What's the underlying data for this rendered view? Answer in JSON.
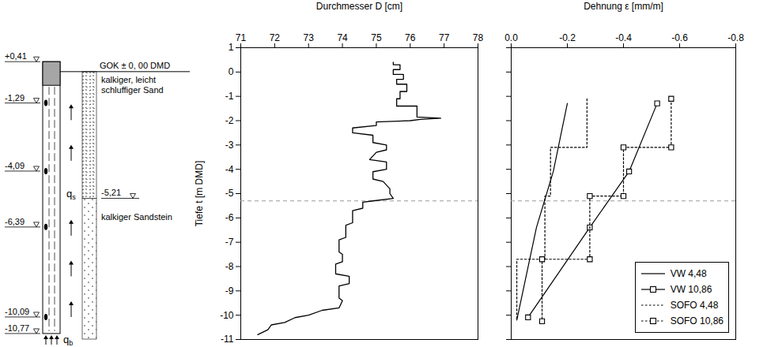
{
  "diagram": {
    "pile_levels": [
      {
        "value": 0.41,
        "label": "+0,41"
      },
      {
        "value": -1.29,
        "label": "-1,29"
      },
      {
        "value": -4.09,
        "label": "-4,09"
      },
      {
        "value": -6.39,
        "label": "-6,39"
      },
      {
        "value": -10.09,
        "label": "-10,09"
      },
      {
        "value": -10.77,
        "label": "-10,77"
      }
    ],
    "ground_level": {
      "value": 0,
      "label": "GOK ± 0, 00 DMD"
    },
    "layers": [
      {
        "name": "kalkiger, leicht schluffiger Sand",
        "top": 0,
        "bottom": -5.21
      },
      {
        "name": "kalkiger Sandstein",
        "top": -5.21,
        "bottom": -11
      }
    ],
    "layer_boundary": {
      "value": -5.21,
      "label": "-5,21"
    },
    "shaft_resistance": {
      "symbol": "q",
      "index": "s"
    },
    "base_resistance": {
      "symbol": "q",
      "index": "b"
    }
  },
  "chart_data": [
    {
      "type": "line",
      "x_label": "Durchmesser D [cm]",
      "y_label": "Tiefe t [m DMD]",
      "xlim": [
        71,
        78
      ],
      "xticks": [
        71,
        72,
        73,
        74,
        75,
        76,
        77,
        78
      ],
      "ylim": [
        -11,
        1
      ],
      "yticks": [
        1,
        0,
        -1,
        -2,
        -3,
        -4,
        -5,
        -6,
        -7,
        -8,
        -9,
        -10,
        -11
      ],
      "grid": false,
      "color": "#000000",
      "reference_y": -5.3,
      "x": [
        75.5,
        75.5,
        75.7,
        75.7,
        75.5,
        75.5,
        75.8,
        75.8,
        75.6,
        75.6,
        75.9,
        75.9,
        75.7,
        75.7,
        75.6,
        75.6,
        76.2,
        76.2,
        76.9,
        76.3,
        76.0,
        75.0,
        75.0,
        74.3,
        74.3,
        74.9,
        74.9,
        75.3,
        75.3,
        75.0,
        74.8,
        75.3,
        75.3,
        74.9,
        74.9,
        75.2,
        75.4,
        75.4,
        75.5,
        74.9,
        74.6,
        74.6,
        74.3,
        74.3,
        74.1,
        74.1,
        73.9,
        73.9,
        74.0,
        74.0,
        73.8,
        73.8,
        74.2,
        74.2,
        73.9,
        73.9,
        74.0,
        73.9,
        73.4,
        73.0,
        72.6,
        72.3,
        71.9,
        71.8,
        71.5
      ],
      "values": [
        0.4,
        0.3,
        0.3,
        0.1,
        0.1,
        -0.1,
        -0.1,
        -0.3,
        -0.3,
        -0.5,
        -0.5,
        -0.8,
        -0.8,
        -1.1,
        -1.1,
        -1.4,
        -1.4,
        -1.85,
        -1.9,
        -1.95,
        -2.0,
        -2.05,
        -2.2,
        -2.3,
        -2.5,
        -2.6,
        -2.9,
        -3.0,
        -3.2,
        -3.3,
        -3.6,
        -3.7,
        -4.0,
        -4.1,
        -4.4,
        -4.5,
        -4.8,
        -5.0,
        -5.2,
        -5.3,
        -5.35,
        -5.6,
        -5.7,
        -6.2,
        -6.3,
        -6.8,
        -6.9,
        -7.4,
        -7.5,
        -7.8,
        -7.9,
        -8.3,
        -8.4,
        -8.7,
        -8.8,
        -9.3,
        -9.4,
        -9.7,
        -9.8,
        -10.0,
        -10.1,
        -10.3,
        -10.4,
        -10.6,
        -10.8
      ]
    },
    {
      "type": "line",
      "x_label": "Dehnung ε [mm/m]",
      "xlim": [
        0,
        -0.8
      ],
      "xticks": [
        {
          "value": 0,
          "label": "0.0"
        },
        -0.2,
        -0.4,
        -0.6,
        -0.8
      ],
      "ylim": [
        -11,
        1
      ],
      "yticks": [
        1,
        0,
        -1,
        -2,
        -3,
        -4,
        -5,
        -6,
        -7,
        -8,
        -9,
        -10,
        -11
      ],
      "tick_labels": "x",
      "grid": false,
      "legend": "bottom-right",
      "reference_y": -5.3,
      "series": [
        {
          "name": "VW 4,48",
          "color": "#000000",
          "line_style": "solid",
          "marker": "none",
          "x": [
            -0.2,
            -0.15,
            -0.09,
            -0.02
          ],
          "values": [
            -1.29,
            -4.09,
            -6.39,
            -10.2
          ]
        },
        {
          "name": "VW 10,86",
          "color": "#000000",
          "line_style": "solid",
          "marker": "square",
          "x": [
            -0.52,
            -0.42,
            -0.28,
            -0.06
          ],
          "values": [
            -1.29,
            -4.09,
            -6.39,
            -10.09
          ]
        },
        {
          "name": "SOFO 4,48",
          "color": "#000000",
          "line_style": "dotted",
          "marker": "none",
          "x": [
            -0.27,
            -0.27,
            -0.14,
            -0.14,
            -0.12,
            -0.12,
            -0.02,
            -0.02
          ],
          "values": [
            -1.1,
            -3.1,
            -3.1,
            -5.1,
            -5.1,
            -7.7,
            -7.7,
            -10.2
          ]
        },
        {
          "name": "SOFO 10,86",
          "color": "#000000",
          "line_style": "dotted",
          "marker": "square",
          "x": [
            -0.57,
            -0.57,
            -0.4,
            -0.4,
            -0.28,
            -0.28,
            -0.11,
            -0.11
          ],
          "values": [
            -1.1,
            -3.1,
            -3.1,
            -5.1,
            -5.1,
            -7.7,
            -7.7,
            -10.25
          ]
        }
      ]
    }
  ]
}
